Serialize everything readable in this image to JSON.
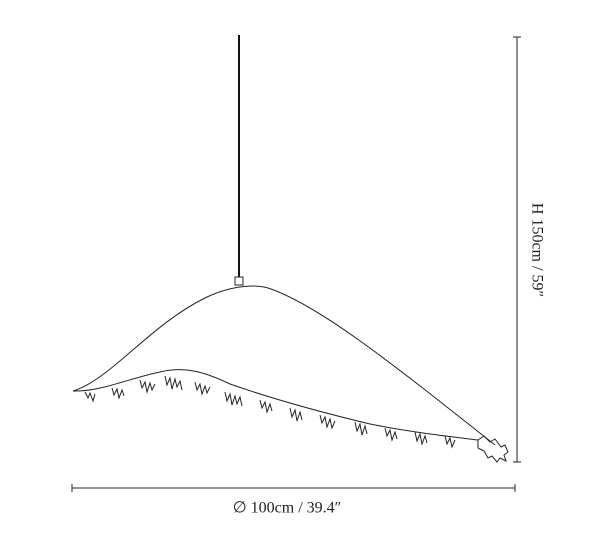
{
  "dimensions": {
    "height": "H 150cm / 59″",
    "diameter": "∅ 100cm / 39.4″"
  }
}
